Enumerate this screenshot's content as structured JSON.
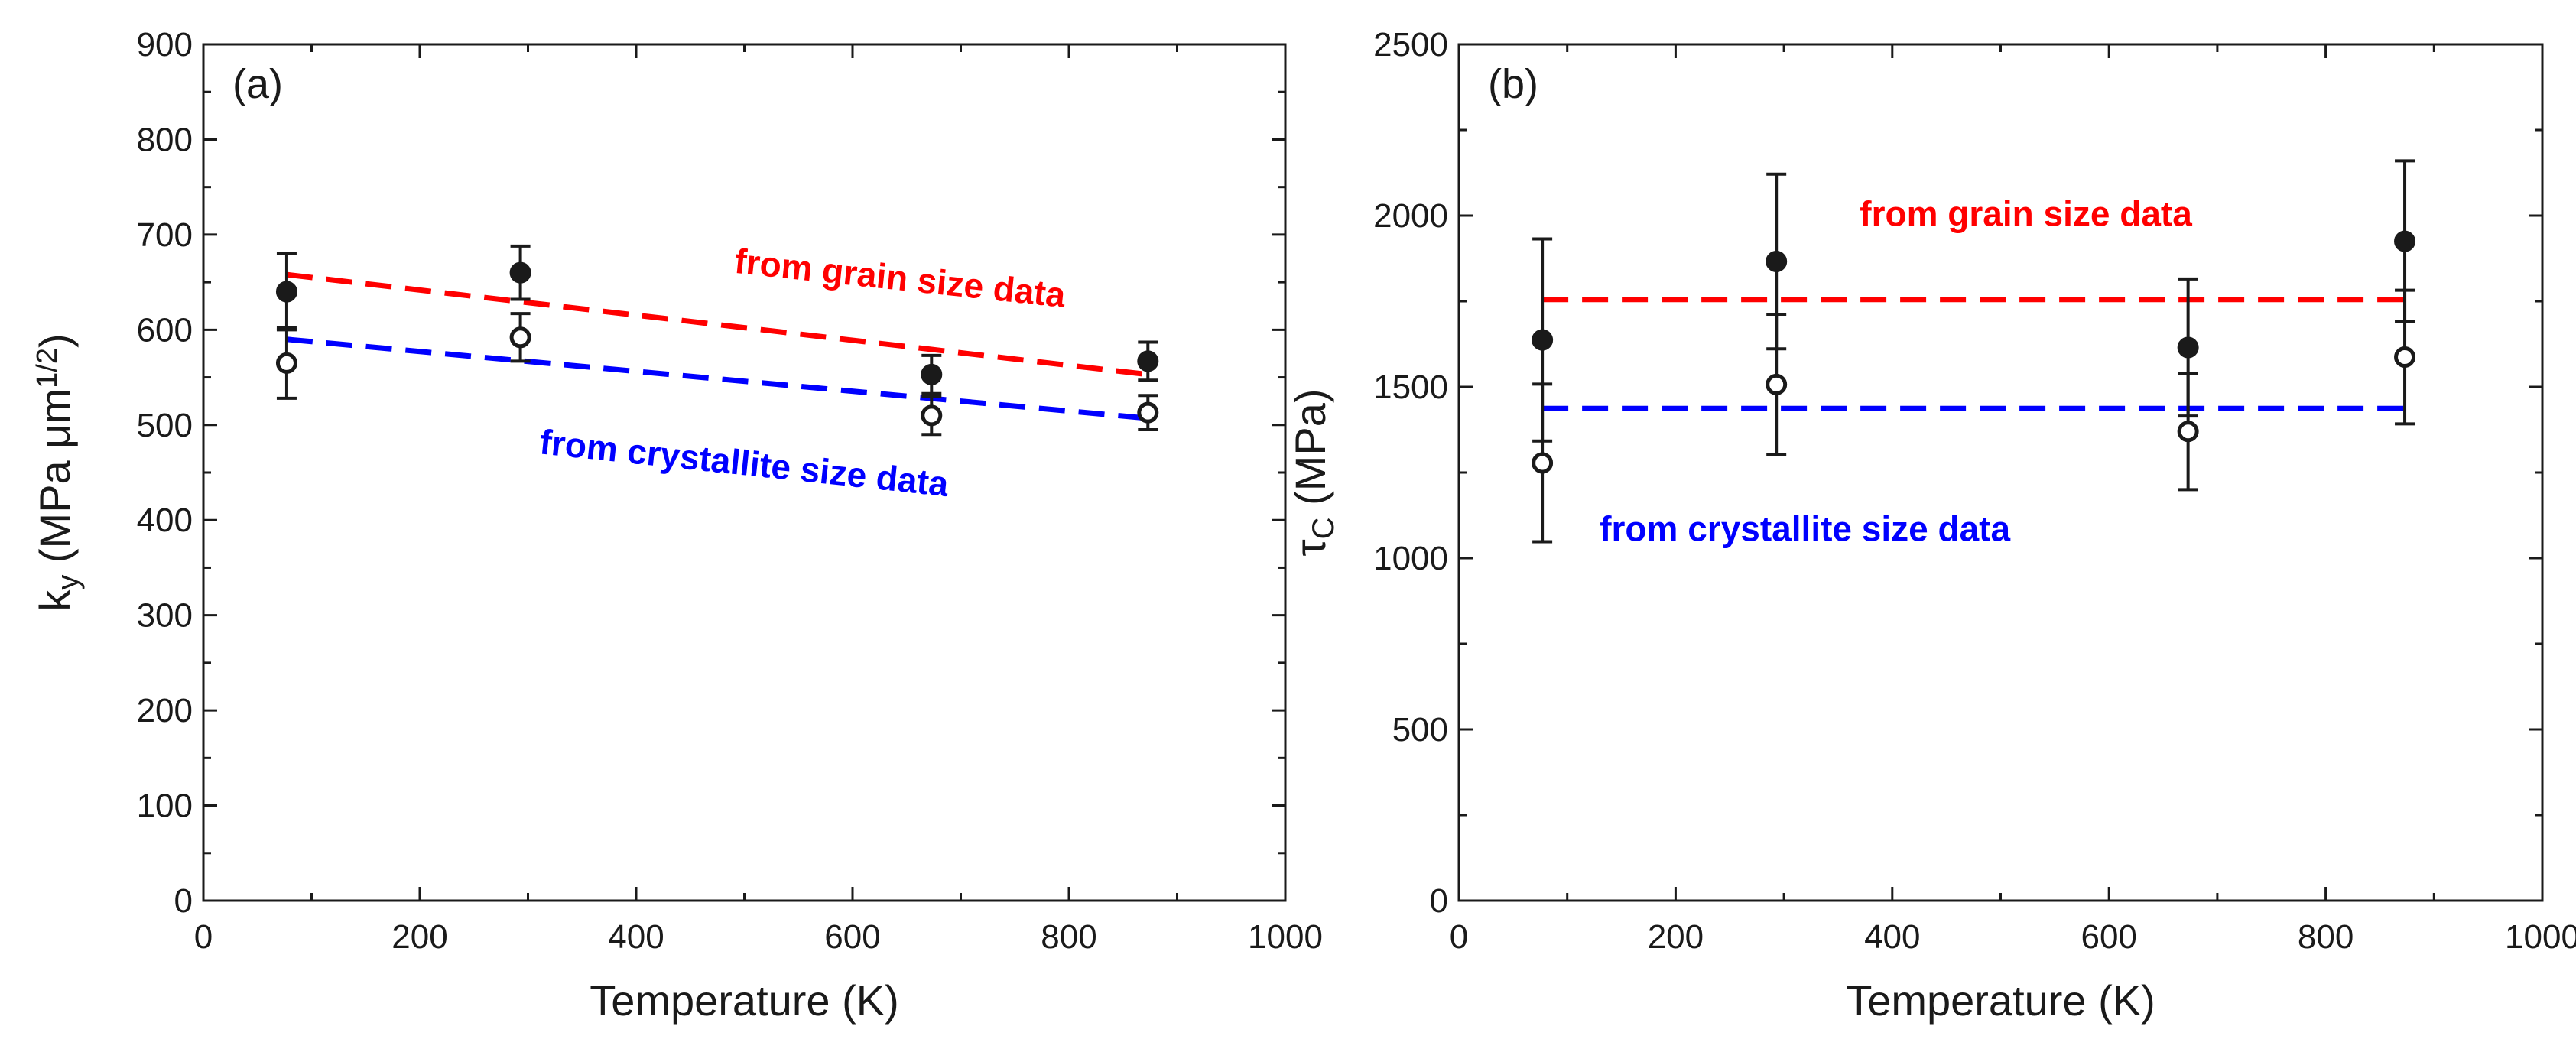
{
  "chart_data": [
    {
      "type": "scatter",
      "panel_label": "(a)",
      "xlabel": "Temperature (K)",
      "ylabel": {
        "main": "k",
        "sub": "y",
        "units": " (MPa μm",
        "sup": "1/2",
        "close": ")"
      },
      "xlim": [
        0,
        1000
      ],
      "ylim": [
        0,
        900
      ],
      "xticks": [
        0,
        200,
        400,
        600,
        800,
        1000
      ],
      "yticks": [
        0,
        100,
        200,
        300,
        400,
        500,
        600,
        700,
        800,
        900
      ],
      "series": [
        {
          "name": "grain size",
          "marker": "filled-circle",
          "x": [
            77,
            293,
            673,
            873
          ],
          "y": [
            640,
            660,
            553,
            567
          ],
          "yerr": [
            40,
            28,
            20,
            20
          ]
        },
        {
          "name": "crystallite size",
          "marker": "open-circle",
          "x": [
            77,
            293,
            673,
            873
          ],
          "y": [
            565,
            592,
            510,
            513
          ],
          "yerr": [
            37,
            25,
            20,
            18
          ]
        }
      ],
      "fit_lines": [
        {
          "name": "from grain size data",
          "color": "#ff0000",
          "x": [
            77,
            873
          ],
          "y": [
            658,
            553
          ]
        },
        {
          "name": "from crystallite size data",
          "color": "#0000ff",
          "x": [
            77,
            873
          ],
          "y": [
            590,
            507
          ]
        }
      ],
      "annotations": [
        {
          "text": "from grain size data",
          "color": "#ff0000",
          "x": 490,
          "y": 660,
          "rotate": 6
        },
        {
          "text": "from crystallite size data",
          "color": "#0000ff",
          "x": 310,
          "y": 470,
          "rotate": 6
        }
      ]
    },
    {
      "type": "scatter",
      "panel_label": "(b)",
      "xlabel": "Temperature (K)",
      "ylabel": {
        "main": "τ",
        "sub": "C",
        "units": " (MPa)",
        "sup": "",
        "close": ""
      },
      "xlim": [
        0,
        1000
      ],
      "ylim": [
        0,
        2500
      ],
      "xticks": [
        0,
        200,
        400,
        600,
        800,
        1000
      ],
      "yticks": [
        0,
        500,
        1000,
        1500,
        2000,
        2500
      ],
      "series": [
        {
          "name": "grain size",
          "marker": "filled-circle",
          "x": [
            77,
            293,
            673,
            873
          ],
          "y": [
            1637,
            1866,
            1615,
            1925
          ],
          "yerr": [
            295,
            255,
            200,
            235
          ]
        },
        {
          "name": "crystallite size",
          "marker": "open-circle",
          "x": [
            77,
            293,
            673,
            873
          ],
          "y": [
            1278,
            1507,
            1370,
            1587
          ],
          "yerr": [
            230,
            205,
            170,
            195
          ]
        }
      ],
      "fit_lines": [
        {
          "name": "from grain size data",
          "color": "#ff0000",
          "x": [
            77,
            873
          ],
          "y": [
            1755,
            1755
          ]
        },
        {
          "name": "from crystallite size data",
          "color": "#0000ff",
          "x": [
            77,
            873
          ],
          "y": [
            1437,
            1437
          ]
        }
      ],
      "annotations": [
        {
          "text": "from grain size data",
          "color": "#ff0000",
          "x": 370,
          "y": 1970,
          "rotate": 0
        },
        {
          "text": "from crystallite size data",
          "color": "#0000ff",
          "x": 130,
          "y": 1050,
          "rotate": 0
        }
      ]
    }
  ]
}
